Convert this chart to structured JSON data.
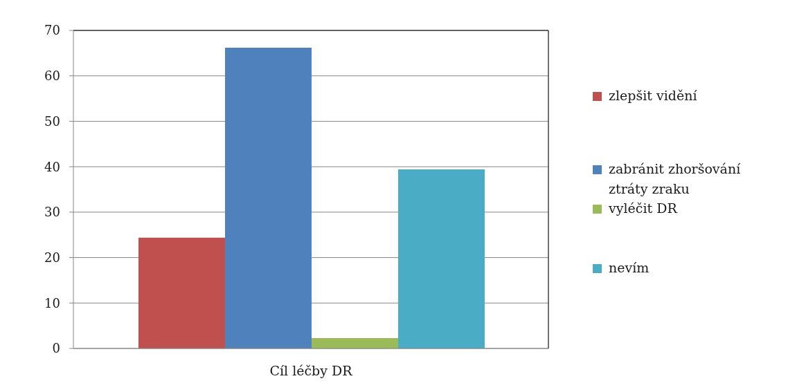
{
  "chart_data": {
    "type": "bar",
    "categories": [
      "Cíl léčby DR"
    ],
    "series": [
      {
        "name": "zlepšit vidění",
        "color": "#c0504d",
        "values": [
          24.4
        ]
      },
      {
        "name": "zabránit zhoršování ztráty zraku",
        "color": "#4f81bd",
        "values": [
          66.2
        ]
      },
      {
        "name": "vyléčit DR",
        "color": "#9bbb59",
        "values": [
          2.3
        ]
      },
      {
        "name": "nevím",
        "color": "#4bacc6",
        "values": [
          39.4
        ]
      }
    ],
    "ylim": [
      0,
      70
    ],
    "yticks": [
      0,
      10,
      20,
      30,
      40,
      50,
      60,
      70
    ],
    "grid": "y",
    "legend": "right"
  }
}
